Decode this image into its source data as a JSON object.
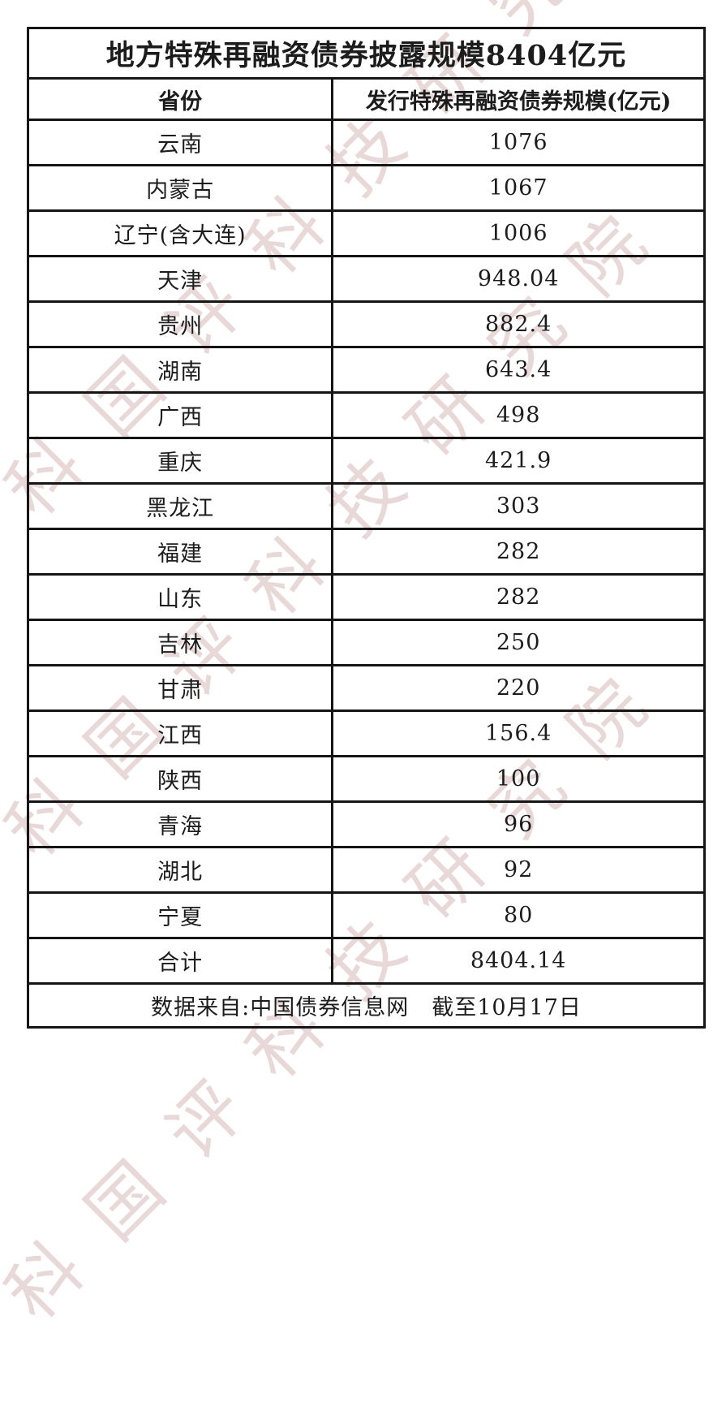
{
  "watermark": {
    "text": "中科国评科技研究院",
    "color": "#c89a9a"
  },
  "table": {
    "title": "地方特殊再融资债券披露规模8404亿元",
    "columns": [
      "省份",
      "发行特殊再融资债券规模(亿元)"
    ],
    "rows": [
      [
        "云南",
        "1076"
      ],
      [
        "内蒙古",
        "1067"
      ],
      [
        "辽宁(含大连)",
        "1006"
      ],
      [
        "天津",
        "948.04"
      ],
      [
        "贵州",
        "882.4"
      ],
      [
        "湖南",
        "643.4"
      ],
      [
        "广西",
        "498"
      ],
      [
        "重庆",
        "421.9"
      ],
      [
        "黑龙江",
        "303"
      ],
      [
        "福建",
        "282"
      ],
      [
        "山东",
        "282"
      ],
      [
        "吉林",
        "250"
      ],
      [
        "甘肃",
        "220"
      ],
      [
        "江西",
        "156.4"
      ],
      [
        "陕西",
        "100"
      ],
      [
        "青海",
        "96"
      ],
      [
        "湖北",
        "92"
      ],
      [
        "宁夏",
        "80"
      ],
      [
        "合计",
        "8404.14"
      ]
    ],
    "footer": "数据来自:中国债券信息网　截至10月17日"
  },
  "chart_data": {
    "type": "table",
    "title": "地方特殊再融资债券披露规模8404亿元",
    "columns": [
      "省份",
      "发行特殊再融资债券规模(亿元)"
    ],
    "categories": [
      "云南",
      "内蒙古",
      "辽宁(含大连)",
      "天津",
      "贵州",
      "湖南",
      "广西",
      "重庆",
      "黑龙江",
      "福建",
      "山东",
      "吉林",
      "甘肃",
      "江西",
      "陕西",
      "青海",
      "湖北",
      "宁夏"
    ],
    "values": [
      1076,
      1067,
      1006,
      948.04,
      882.4,
      643.4,
      498,
      421.9,
      303,
      282,
      282,
      250,
      220,
      156.4,
      100,
      96,
      92,
      80
    ],
    "total_label": "合计",
    "total": 8404.14,
    "source_note": "数据来自:中国债券信息网 截至10月17日"
  }
}
